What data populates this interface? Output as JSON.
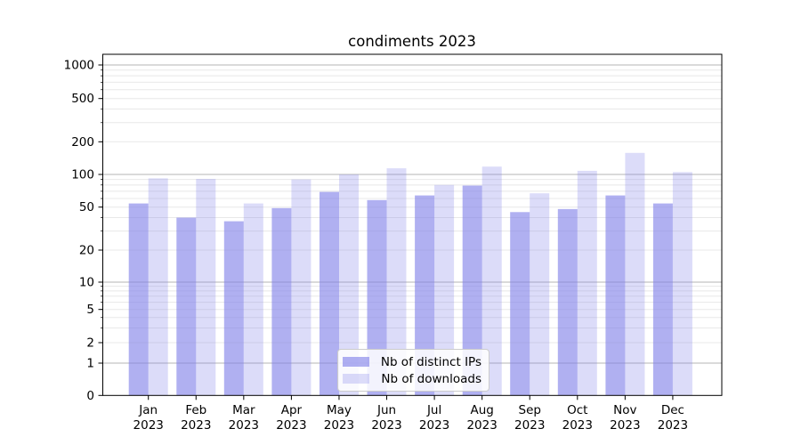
{
  "chart_data": {
    "type": "bar",
    "title": "condiments 2023",
    "categories": [
      "Jan",
      "Feb",
      "Mar",
      "Apr",
      "May",
      "Jun",
      "Jul",
      "Aug",
      "Sep",
      "Oct",
      "Nov",
      "Dec"
    ],
    "x_year_suffix": "2023",
    "series": [
      {
        "name": "Nb of distinct IPs",
        "values": [
          54,
          40,
          37,
          49,
          69,
          58,
          64,
          79,
          45,
          48,
          64,
          54
        ],
        "color": "#8080e8",
        "opacity": 0.62
      },
      {
        "name": "Nb of downloads",
        "values": [
          92,
          91,
          54,
          90,
          100,
          114,
          80,
          118,
          67,
          108,
          158,
          105
        ],
        "color": "#8080e8",
        "opacity": 0.28
      }
    ],
    "yscale": "symlog",
    "ytick_labels": [
      "0",
      "1",
      "2",
      "5",
      "10",
      "20",
      "50",
      "100",
      "200",
      "500",
      "1000"
    ],
    "ylim": [
      0,
      1500
    ],
    "grid": true,
    "legend_position": "lower center",
    "colors": {
      "major_grid": "#b4b4b4",
      "minor_grid": "#e8e8e8",
      "spine": "#000000",
      "text": "#000000"
    }
  }
}
